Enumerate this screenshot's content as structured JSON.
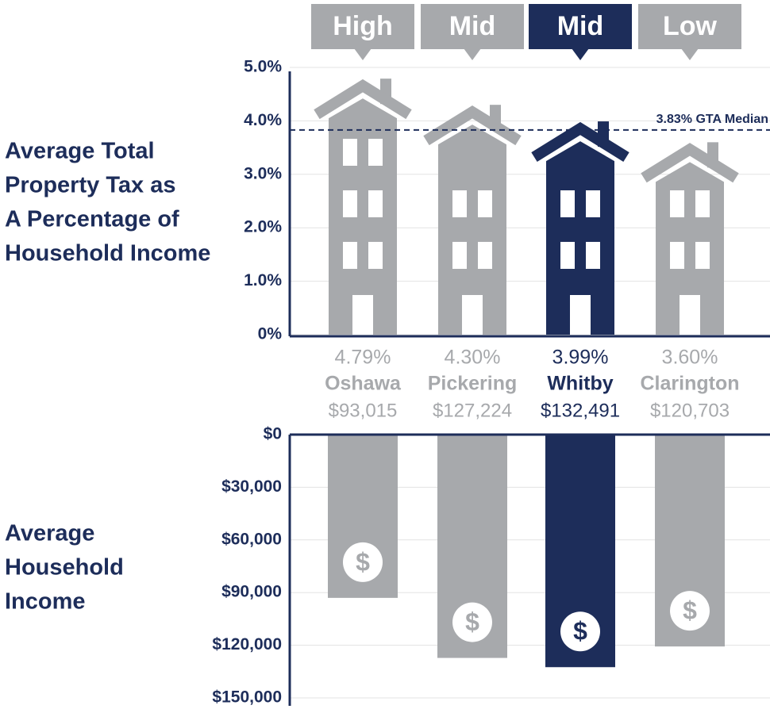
{
  "chart_data": [
    {
      "type": "house-bar",
      "title_lines": [
        "Average Total",
        "Property Tax as",
        "A Percentage of",
        "Household Income"
      ],
      "categories": [
        "Oshawa",
        "Pickering",
        "Whitby",
        "Clarington"
      ],
      "values": [
        4.79,
        4.3,
        3.99,
        3.6
      ],
      "value_labels": [
        "4.79%",
        "4.30%",
        "3.99%",
        "3.60%"
      ],
      "tiers": [
        "High",
        "Mid",
        "Mid",
        "Low"
      ],
      "colors": [
        "#a7a9ac",
        "#a7a9ac",
        "#1d2d5a",
        "#a7a9ac"
      ],
      "ylim": [
        0,
        5
      ],
      "yticks": [
        {
          "value": 0,
          "label": "0%"
        },
        {
          "value": 1,
          "label": "1.0%"
        },
        {
          "value": 2,
          "label": "2.0%"
        },
        {
          "value": 3,
          "label": "3.0%"
        },
        {
          "value": 4,
          "label": "4.0%"
        },
        {
          "value": 5,
          "label": "5.0%"
        }
      ],
      "reference": {
        "value": 3.83,
        "label": "3.83% GTA Median"
      },
      "grid": true
    },
    {
      "type": "inverted-bar",
      "title_lines": [
        "Average",
        "Household",
        "Income"
      ],
      "values": [
        93015,
        127224,
        132491,
        120703
      ],
      "value_labels": [
        "$93,015",
        "$127,224",
        "$132,491",
        "$120,703"
      ],
      "colors": [
        "#a7a9ac",
        "#a7a9ac",
        "#1d2d5a",
        "#a7a9ac"
      ],
      "icon": "$",
      "ylim": [
        0,
        150000
      ],
      "yticks": [
        {
          "value": 0,
          "label": "$0"
        },
        {
          "value": 30000,
          "label": "$30,000"
        },
        {
          "value": 60000,
          "label": "$60,000"
        },
        {
          "value": 90000,
          "label": "$90,000"
        },
        {
          "value": 120000,
          "label": "$120,000"
        },
        {
          "value": 150000,
          "label": "$150,000"
        }
      ],
      "grid": true
    }
  ]
}
